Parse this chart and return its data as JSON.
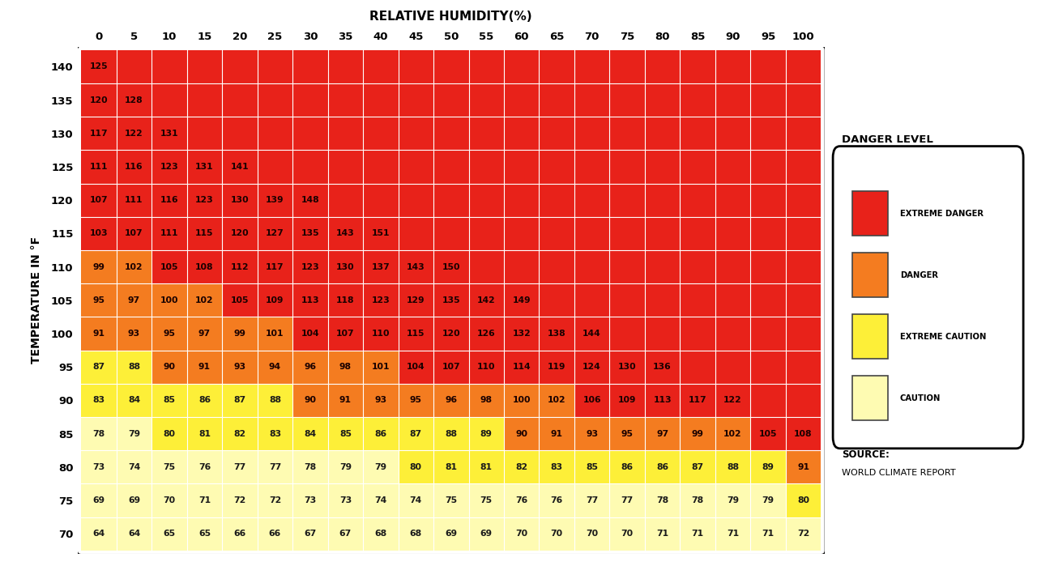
{
  "title": "RELATIVE HUMIDITY(%)",
  "ylabel": "TEMPERATURE IN °F",
  "humidity_cols": [
    0,
    5,
    10,
    15,
    20,
    25,
    30,
    35,
    40,
    45,
    50,
    55,
    60,
    65,
    70,
    75,
    80,
    85,
    90,
    95,
    100
  ],
  "temp_rows": [
    140,
    135,
    130,
    125,
    120,
    115,
    110,
    105,
    100,
    95,
    90,
    85,
    80,
    75,
    70
  ],
  "table": [
    [
      125,
      null,
      null,
      null,
      null,
      null,
      null,
      null,
      null,
      null,
      null,
      null,
      null,
      null,
      null,
      null,
      null,
      null,
      null,
      null,
      null
    ],
    [
      120,
      128,
      null,
      null,
      null,
      null,
      null,
      null,
      null,
      null,
      null,
      null,
      null,
      null,
      null,
      null,
      null,
      null,
      null,
      null,
      null
    ],
    [
      117,
      122,
      131,
      null,
      null,
      null,
      null,
      null,
      null,
      null,
      null,
      null,
      null,
      null,
      null,
      null,
      null,
      null,
      null,
      null,
      null
    ],
    [
      111,
      116,
      123,
      131,
      141,
      null,
      null,
      null,
      null,
      null,
      null,
      null,
      null,
      null,
      null,
      null,
      null,
      null,
      null,
      null,
      null
    ],
    [
      107,
      111,
      116,
      123,
      130,
      139,
      148,
      null,
      null,
      null,
      null,
      null,
      null,
      null,
      null,
      null,
      null,
      null,
      null,
      null,
      null
    ],
    [
      103,
      107,
      111,
      115,
      120,
      127,
      135,
      143,
      151,
      null,
      null,
      null,
      null,
      null,
      null,
      null,
      null,
      null,
      null,
      null,
      null
    ],
    [
      99,
      102,
      105,
      108,
      112,
      117,
      123,
      130,
      137,
      143,
      150,
      null,
      null,
      null,
      null,
      null,
      null,
      null,
      null,
      null,
      null
    ],
    [
      95,
      97,
      100,
      102,
      105,
      109,
      113,
      118,
      123,
      129,
      135,
      142,
      149,
      null,
      null,
      null,
      null,
      null,
      null,
      null,
      null
    ],
    [
      91,
      93,
      95,
      97,
      99,
      101,
      104,
      107,
      110,
      115,
      120,
      126,
      132,
      138,
      144,
      null,
      null,
      null,
      null,
      null,
      null
    ],
    [
      87,
      88,
      90,
      91,
      93,
      94,
      96,
      98,
      101,
      104,
      107,
      110,
      114,
      119,
      124,
      130,
      136,
      null,
      null,
      null,
      null
    ],
    [
      83,
      84,
      85,
      86,
      87,
      88,
      90,
      91,
      93,
      95,
      96,
      98,
      100,
      102,
      106,
      109,
      113,
      117,
      122,
      null,
      null
    ],
    [
      78,
      79,
      80,
      81,
      82,
      83,
      84,
      85,
      86,
      87,
      88,
      89,
      90,
      91,
      93,
      95,
      97,
      99,
      102,
      105,
      108
    ],
    [
      73,
      74,
      75,
      76,
      77,
      77,
      78,
      79,
      79,
      80,
      81,
      81,
      82,
      83,
      85,
      86,
      86,
      87,
      88,
      89,
      91
    ],
    [
      69,
      69,
      70,
      71,
      72,
      72,
      73,
      73,
      74,
      74,
      75,
      75,
      76,
      76,
      77,
      77,
      78,
      78,
      79,
      79,
      80
    ],
    [
      64,
      64,
      65,
      65,
      66,
      66,
      67,
      67,
      68,
      68,
      69,
      69,
      70,
      70,
      70,
      70,
      71,
      71,
      71,
      71,
      72
    ]
  ],
  "color_extreme_danger": "#E8221A",
  "color_danger": "#F47C20",
  "color_extreme_caution": "#FDEF38",
  "color_caution": "#FEFBB2",
  "legend_items": [
    [
      "#E8221A",
      "EXTREME DANGER"
    ],
    [
      "#F47C20",
      "DANGER"
    ],
    [
      "#FDEF38",
      "EXTREME CAUTION"
    ],
    [
      "#FEFBB2",
      "CAUTION"
    ]
  ],
  "source_line1": "SOURCE:",
  "source_line2": "WORLD CLIMATE REPORT",
  "danger_level_title": "DANGER LEVEL"
}
